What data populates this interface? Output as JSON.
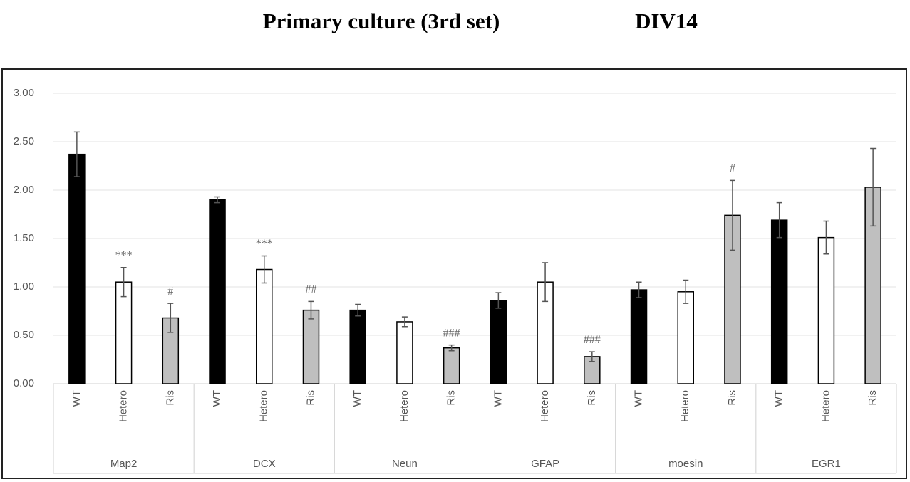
{
  "chart_data": {
    "type": "bar",
    "title": "Primary culture (3rd set)",
    "subtitle": "DIV14",
    "categories": [
      "Map2",
      "DCX",
      "Neun",
      "GFAP",
      "moesin",
      "EGR1"
    ],
    "series": [
      {
        "name": "WT",
        "color": "#000000",
        "values": [
          2.37,
          1.9,
          0.76,
          0.86,
          0.97,
          1.69
        ],
        "errors": [
          0.23,
          0.03,
          0.06,
          0.08,
          0.08,
          0.18
        ],
        "labels": [
          null,
          null,
          null,
          null,
          null,
          null
        ]
      },
      {
        "name": "Hetero",
        "color": "#ffffff",
        "values": [
          1.05,
          1.18,
          0.64,
          1.05,
          0.95,
          1.51
        ],
        "errors": [
          0.15,
          0.14,
          0.05,
          0.2,
          0.12,
          0.17
        ],
        "labels": [
          "***",
          "***",
          null,
          null,
          null,
          null
        ]
      },
      {
        "name": "Ris",
        "color": "#bfbfbf",
        "values": [
          0.68,
          0.76,
          0.37,
          0.28,
          1.74,
          2.03
        ],
        "errors": [
          0.15,
          0.09,
          0.03,
          0.05,
          0.36,
          0.4
        ],
        "labels": [
          "#",
          "##",
          "###",
          "###",
          "#",
          null
        ]
      }
    ],
    "ylim": [
      0,
      3
    ],
    "yticks": [
      {
        "value": 0,
        "label": "0.00"
      },
      {
        "value": 0.5,
        "label": "0.50"
      },
      {
        "value": 1,
        "label": "1.00"
      },
      {
        "value": 1.5,
        "label": "1.50"
      },
      {
        "value": 2,
        "label": "2.00"
      },
      {
        "value": 2.5,
        "label": "2.50"
      },
      {
        "value": 3,
        "label": "3.00"
      }
    ],
    "grid": true
  }
}
